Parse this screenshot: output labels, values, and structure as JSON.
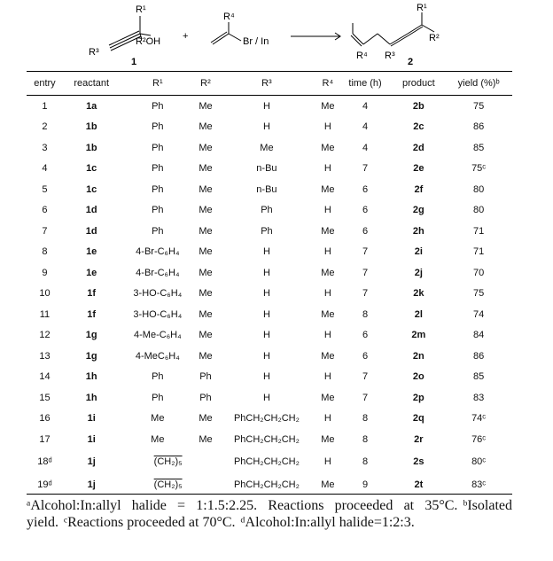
{
  "scheme": {
    "labels": [
      "R¹",
      "R²OH",
      "R³",
      "1",
      "+",
      "R⁴",
      "Br / In",
      "R¹",
      "R²",
      "R⁴",
      "R³",
      "2"
    ]
  },
  "table": {
    "header": [
      "entry",
      "reactant",
      "R¹",
      "R²",
      "R³",
      "R⁴",
      "time (h)",
      "product",
      "yield (%)ᵇ"
    ],
    "rows": [
      [
        "1",
        "1a",
        "Ph",
        "Me",
        "H",
        "Me",
        "4",
        "2b",
        "75"
      ],
      [
        "2",
        "1b",
        "Ph",
        "Me",
        "H",
        "H",
        "4",
        "2c",
        "86"
      ],
      [
        "3",
        "1b",
        "Ph",
        "Me",
        "Me",
        "Me",
        "4",
        "2d",
        "85"
      ],
      [
        "4",
        "1c",
        "Ph",
        "Me",
        "n-Bu",
        "H",
        "7",
        "2e",
        "75ᶜ"
      ],
      [
        "5",
        "1c",
        "Ph",
        "Me",
        "n-Bu",
        "Me",
        "6",
        "2f",
        "80"
      ],
      [
        "6",
        "1d",
        "Ph",
        "Me",
        "Ph",
        "H",
        "6",
        "2g",
        "80"
      ],
      [
        "7",
        "1d",
        "Ph",
        "Me",
        "Ph",
        "Me",
        "6",
        "2h",
        "71"
      ],
      [
        "8",
        "1e",
        "4-Br-C₆H₄",
        "Me",
        "H",
        "H",
        "7",
        "2i",
        "71"
      ],
      [
        "9",
        "1e",
        "4-Br-C₆H₄",
        "Me",
        "H",
        "Me",
        "7",
        "2j",
        "70"
      ],
      [
        "10",
        "1f",
        "3-HO-C₆H₄",
        "Me",
        "H",
        "H",
        "7",
        "2k",
        "75"
      ],
      [
        "11",
        "1f",
        "3-HO-C₆H₄",
        "Me",
        "H",
        "Me",
        "8",
        "2l",
        "74"
      ],
      [
        "12",
        "1g",
        "4-Me-C₆H₄",
        "Me",
        "H",
        "H",
        "6",
        "2m",
        "84"
      ],
      [
        "13",
        "1g",
        "4-MeC₆H₄",
        "Me",
        "H",
        "Me",
        "6",
        "2n",
        "86"
      ],
      [
        "14",
        "1h",
        "Ph",
        "Ph",
        "H",
        "H",
        "7",
        "2o",
        "85"
      ],
      [
        "15",
        "1h",
        "Ph",
        "Ph",
        "H",
        "Me",
        "7",
        "2p",
        "83"
      ],
      [
        "16",
        "1i",
        "Me",
        "Me",
        "PhCH₂CH₂CH₂",
        "H",
        "8",
        "2q",
        "74ᶜ"
      ],
      [
        "17",
        "1i",
        "Me",
        "Me",
        "PhCH₂CH₂CH₂",
        "Me",
        "8",
        "2r",
        "76ᶜ"
      ],
      [
        "18ᵈ",
        "1j",
        "(CH₂)₅",
        "PhCH₂CH₂CH₂",
        "H",
        "8",
        "2s",
        "80ᶜ"
      ],
      [
        "19ᵈ",
        "1j",
        "(CH₂)₅",
        "PhCH₂CH₂CH₂",
        "Me",
        "9",
        "2t",
        "83ᶜ"
      ]
    ]
  },
  "footnotes": [
    "ᵃAlcohol:In:allyl halide = 1:1.5:2.25. Reactions proceeded at 35°C.",
    "ᵇIsolated yield.",
    "ᶜReactions proceeded at 70°C.",
    "ᵈAlcohol:In:allyl halide=1:2:3."
  ]
}
